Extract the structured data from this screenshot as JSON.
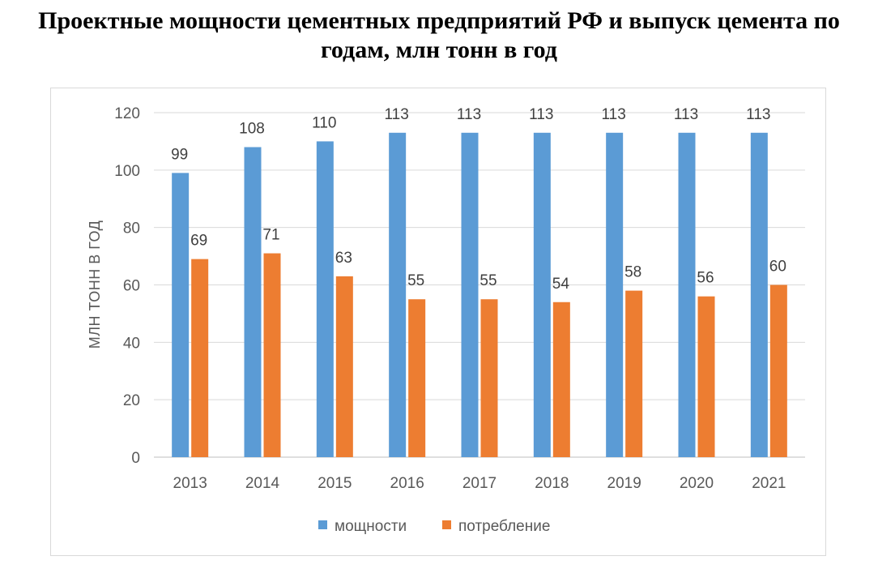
{
  "page": {
    "title_line1": "Проектные мощности цементных предприятий РФ и выпуск цемента по",
    "title_line2": "годам, млн тонн в год"
  },
  "chart_data": {
    "type": "bar",
    "title": "Проектные мощности цементных предприятий РФ и выпуск цемента по годам, млн тонн в год",
    "xlabel": "",
    "ylabel": "МЛН ТОНН В ГОД",
    "ylim": [
      0,
      120
    ],
    "yticks": [
      0,
      20,
      40,
      60,
      80,
      100,
      120
    ],
    "grid": true,
    "legend_position": "bottom",
    "categories": [
      "2013",
      "2014",
      "2015",
      "2016",
      "2017",
      "2018",
      "2019",
      "2020",
      "2021"
    ],
    "series": [
      {
        "name": "мощности",
        "color": "#5b9bd5",
        "values": [
          99,
          108,
          110,
          113,
          113,
          113,
          113,
          113,
          113
        ]
      },
      {
        "name": "потребление",
        "color": "#ed7d31",
        "values": [
          69,
          71,
          63,
          55,
          55,
          54,
          58,
          56,
          60
        ]
      }
    ]
  }
}
